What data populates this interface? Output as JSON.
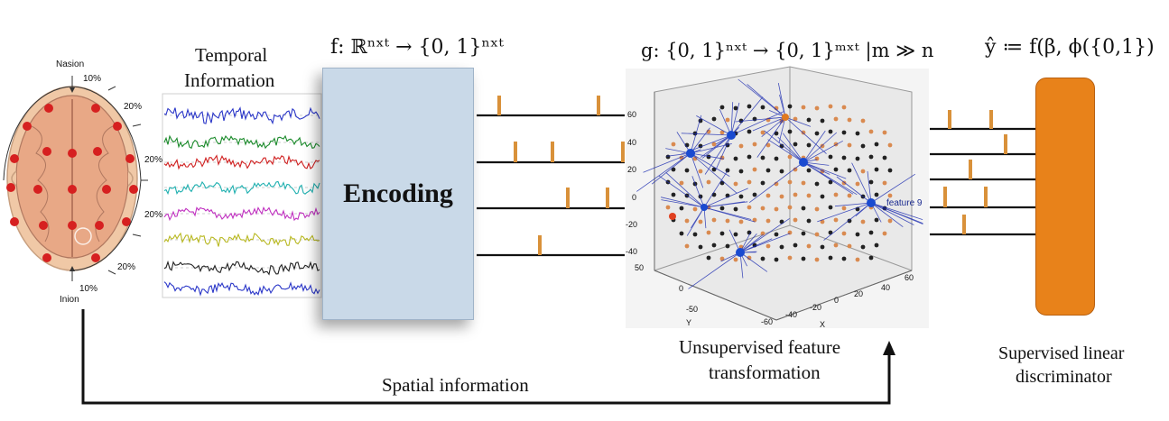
{
  "brain": {
    "nasion": "Nasion",
    "inion": "Inion",
    "pct_top": "10%",
    "pct_bottom": "10%",
    "pct_right_upper": "20%",
    "pct_left_upper": "20%",
    "pct_left_mid": "20%",
    "pct_right_lower": "20%"
  },
  "temporal": {
    "line1": "Temporal",
    "line2": "Information"
  },
  "encoder": {
    "label": "Encoding",
    "formula": "f: ℝⁿˣᵗ → {0, 1}ⁿˣᵗ"
  },
  "transform": {
    "formula": "g: {0, 1}ⁿˣᵗ → {0, 1}ᵐˣᵗ |m ≫ n",
    "caption1": "Unsupervised feature",
    "caption2": "transformation",
    "plot_labels": {
      "z_ticks": [
        "60",
        "40",
        "20",
        "0",
        "-20",
        "-40"
      ],
      "y_ticks": [
        "50",
        "0",
        "-50"
      ],
      "x_ticks": [
        "-60",
        "-40",
        "-20",
        "0",
        "20",
        "40",
        "60"
      ],
      "y_axis": "Y",
      "x_axis": "X",
      "feature": "feature 9"
    }
  },
  "discriminator": {
    "formula": "ŷ ≔ f(β, ϕ({0,1})",
    "caption1": "Supervised linear",
    "caption2": "discriminator"
  },
  "spatial": {
    "label": "Spatial information"
  },
  "colors": {
    "spike": "#d9913a",
    "box_blue": "#c9d9e8",
    "discriminator_orange": "#e8821a",
    "traces": [
      "#2a36c8",
      "#1a8a2a",
      "#d02020",
      "#20b0b0",
      "#c030c0",
      "#b8b820",
      "#222222",
      "#2a36c8"
    ]
  }
}
